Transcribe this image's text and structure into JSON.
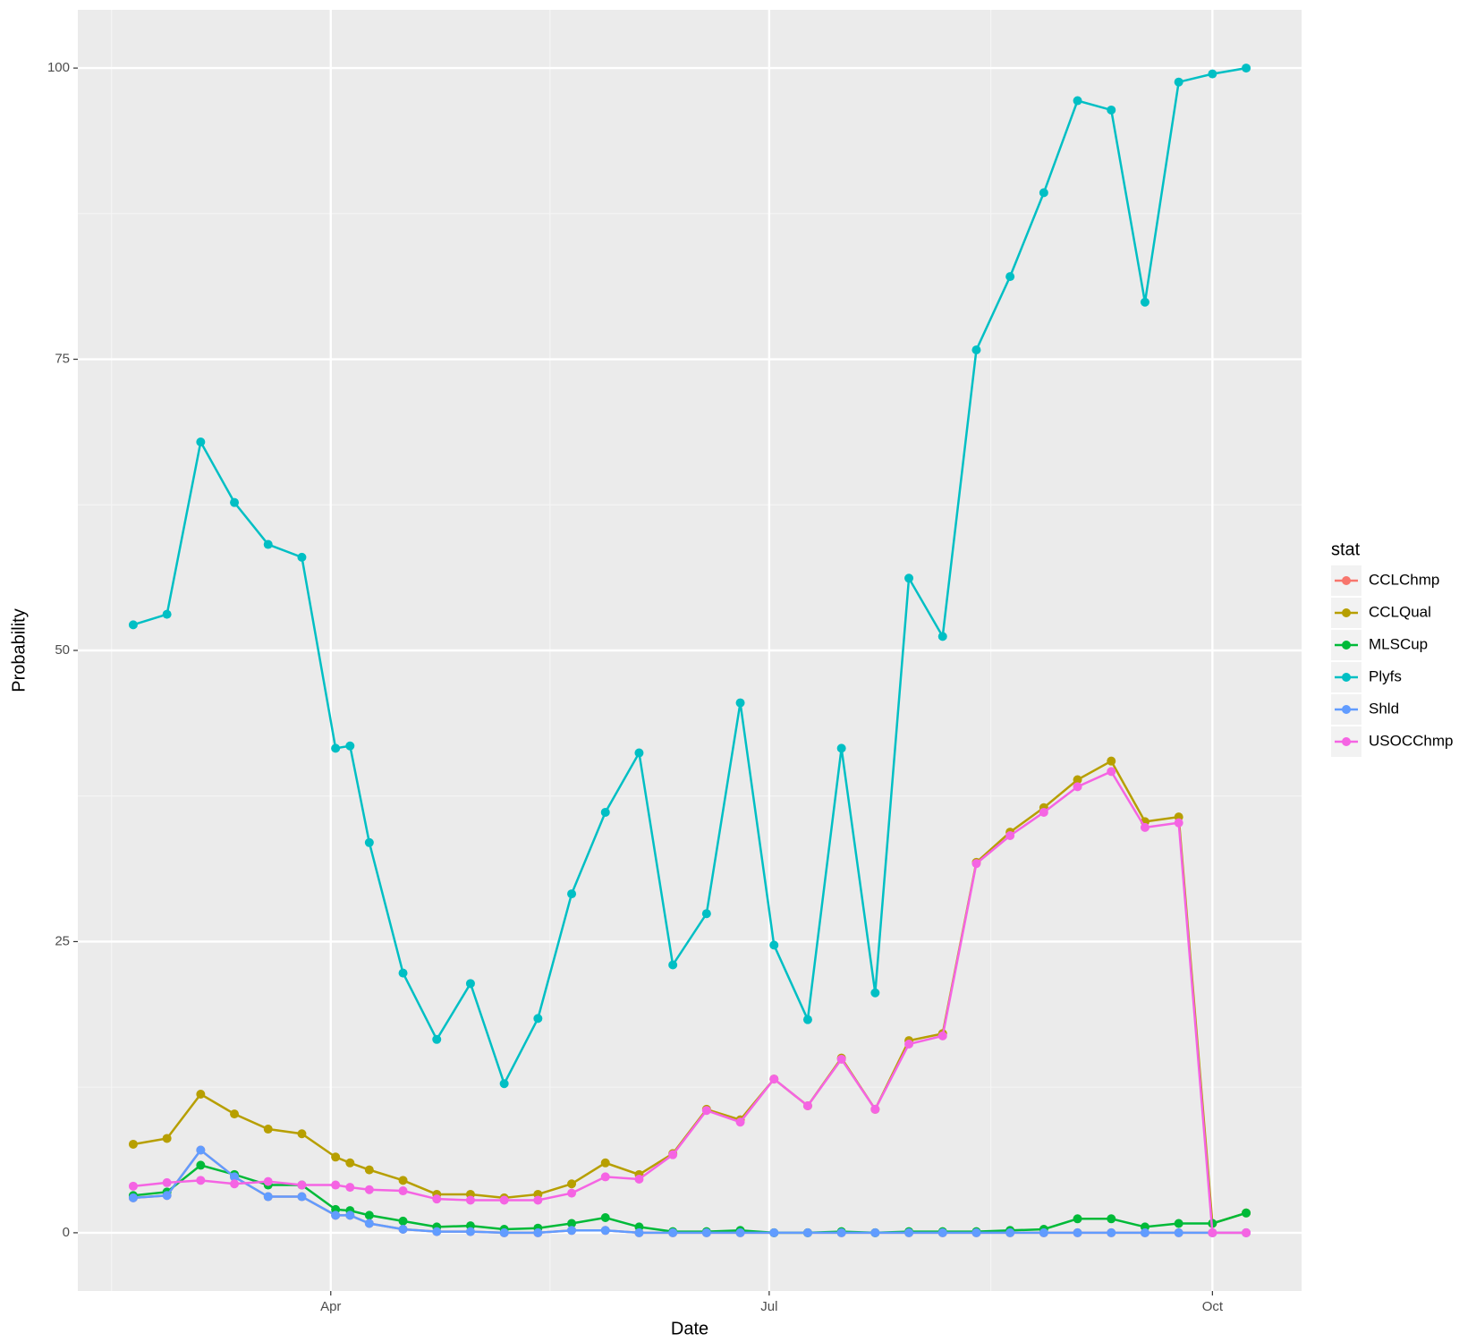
{
  "chart_data": {
    "type": "line",
    "xlabel": "Date",
    "ylabel": "Probability",
    "legend_title": "stat",
    "x": [
      50,
      57,
      64,
      71,
      78,
      85,
      92,
      95,
      99,
      106,
      113,
      120,
      127,
      134,
      141,
      148,
      155,
      162,
      169,
      176,
      183,
      190,
      197,
      204,
      211,
      218,
      225,
      232,
      239,
      246,
      253,
      260,
      267,
      274,
      281
    ],
    "xlim": [
      38.5,
      292.5
    ],
    "xticks": [
      {
        "value": 91,
        "label": "Apr"
      },
      {
        "value": 182,
        "label": "Jul"
      },
      {
        "value": 274,
        "label": "Oct"
      }
    ],
    "ylim": [
      -5,
      105
    ],
    "yticks": [
      0,
      25,
      50,
      75,
      100
    ],
    "grid": true,
    "legend": "right",
    "series": [
      {
        "name": "CCLChmp",
        "color": "#F8766D",
        "values": [
          3.0,
          3.2,
          7.1,
          4.8,
          3.1,
          3.1,
          1.5,
          1.5,
          0.8,
          0.3,
          0.1,
          0.1,
          0,
          0,
          0.2,
          0.2,
          0,
          0,
          0,
          0,
          0,
          0,
          0,
          0,
          0,
          0,
          0,
          0,
          0,
          0,
          0,
          0,
          0,
          0,
          0
        ]
      },
      {
        "name": "CCLQual",
        "color": "#B79F00",
        "values": [
          7.6,
          8.1,
          11.9,
          10.2,
          8.9,
          8.5,
          6.5,
          6.0,
          5.4,
          4.5,
          3.3,
          3.3,
          3.0,
          3.3,
          4.2,
          6.0,
          5.0,
          6.8,
          10.6,
          9.7,
          13.2,
          10.9,
          15.0,
          10.6,
          16.5,
          17.1,
          31.8,
          34.4,
          36.5,
          38.9,
          40.5,
          35.3,
          35.7,
          0.8,
          1.7
        ]
      },
      {
        "name": "MLSCup",
        "color": "#00BA38",
        "values": [
          3.2,
          3.5,
          5.8,
          5.0,
          4.1,
          4.1,
          2.0,
          1.9,
          1.5,
          1.0,
          0.5,
          0.6,
          0.3,
          0.4,
          0.8,
          1.3,
          0.5,
          0.1,
          0.1,
          0.2,
          0,
          0,
          0.1,
          0,
          0.1,
          0.1,
          0.1,
          0.2,
          0.3,
          1.2,
          1.2,
          0.5,
          0.8,
          0.8,
          1.7
        ]
      },
      {
        "name": "Plyfs",
        "color": "#00BFC4",
        "values": [
          52.2,
          53.1,
          67.9,
          62.7,
          59.1,
          58.0,
          41.6,
          41.8,
          33.5,
          22.3,
          16.6,
          21.4,
          12.8,
          18.4,
          29.1,
          36.1,
          41.2,
          23.0,
          27.4,
          45.5,
          24.7,
          18.3,
          41.6,
          20.6,
          56.2,
          51.2,
          75.8,
          82.1,
          89.3,
          97.2,
          96.4,
          79.9,
          98.8,
          99.5,
          100
        ]
      },
      {
        "name": "Shld",
        "color": "#619CFF",
        "values": [
          3.0,
          3.2,
          7.1,
          4.8,
          3.1,
          3.1,
          1.5,
          1.5,
          0.8,
          0.3,
          0.1,
          0.1,
          0,
          0,
          0.2,
          0.2,
          0,
          0,
          0,
          0,
          0,
          0,
          0,
          0,
          0,
          0,
          0,
          0,
          0,
          0,
          0,
          0,
          0,
          0,
          0
        ]
      },
      {
        "name": "USOCChmp",
        "color": "#F564E3",
        "values": [
          4.0,
          4.3,
          4.5,
          4.2,
          4.4,
          4.1,
          4.1,
          3.9,
          3.7,
          3.6,
          2.9,
          2.8,
          2.8,
          2.8,
          3.4,
          4.8,
          4.6,
          6.7,
          10.5,
          9.5,
          13.2,
          10.9,
          14.9,
          10.6,
          16.2,
          16.9,
          31.7,
          34.1,
          36.1,
          38.3,
          39.6,
          34.8,
          35.2,
          0,
          0
        ]
      }
    ]
  }
}
